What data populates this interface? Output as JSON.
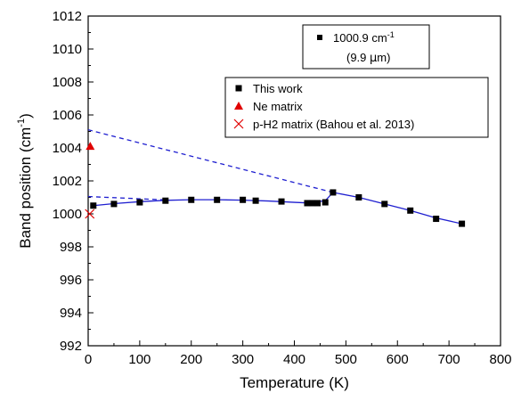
{
  "chart_data": {
    "type": "scatter",
    "xlabel": "Temperature (K)",
    "ylabel_main": "Band position (cm",
    "ylabel_sup": "-1",
    "ylabel_end": ")",
    "xlim": [
      0,
      800
    ],
    "ylim": [
      992,
      1012
    ],
    "xticks": [
      0,
      100,
      200,
      300,
      400,
      500,
      600,
      700,
      800
    ],
    "yticks": [
      992,
      994,
      996,
      998,
      1000,
      1002,
      1004,
      1006,
      1008,
      1010,
      1012
    ],
    "grid": false,
    "band_label": {
      "line1_value": "1000.9 cm",
      "line1_sup": "-1",
      "line2_pre": "(9.9 ",
      "line2_mu": "μ",
      "line2_post": "m)"
    },
    "legend": {
      "placement": "top-right",
      "entries": [
        {
          "label": "This work",
          "marker": "square",
          "color": "#000000"
        },
        {
          "label": "Ne matrix",
          "marker": "triangle",
          "color": "#e00000"
        },
        {
          "label": "p-H2 matrix (Bahou et al. 2013)",
          "marker": "x",
          "color": "#e00000"
        }
      ]
    },
    "series": [
      {
        "marker": "square",
        "color": "#000000",
        "x": [
          10,
          50,
          100,
          150,
          200,
          250,
          300,
          325,
          375,
          425,
          435,
          445,
          460,
          475,
          525,
          575,
          625,
          675,
          725
        ],
        "y": [
          1000.5,
          1000.6,
          1000.7,
          1000.8,
          1000.85,
          1000.85,
          1000.85,
          1000.8,
          1000.75,
          1000.65,
          1000.65,
          1000.65,
          1000.7,
          1001.3,
          1001.0,
          1000.6,
          1000.2,
          999.7,
          999.4
        ]
      },
      {
        "marker": "triangle",
        "color": "#e00000",
        "x": [
          4
        ],
        "y": [
          1004.1
        ]
      },
      {
        "marker": "x",
        "color": "#e00000",
        "x": [
          3
        ],
        "y": [
          1000.0
        ]
      }
    ],
    "fit_lines": [
      {
        "style": "solid",
        "color": "#1f1fd0",
        "x": [
          10,
          50,
          100,
          150,
          200,
          250,
          300,
          350,
          400,
          430,
          460,
          475,
          525,
          575,
          625,
          675,
          725
        ],
        "y": [
          1000.5,
          1000.62,
          1000.74,
          1000.82,
          1000.86,
          1000.86,
          1000.83,
          1000.78,
          1000.7,
          1000.66,
          1000.8,
          1001.3,
          1001.0,
          1000.6,
          1000.2,
          999.75,
          999.4
        ]
      },
      {
        "style": "dashed",
        "color": "#1f1fd0",
        "x": [
          0,
          475
        ],
        "y": [
          1005.1,
          1001.3
        ]
      },
      {
        "style": "dashed",
        "color": "#1f1fd0",
        "x": [
          0,
          150
        ],
        "y": [
          1001.05,
          1000.85
        ]
      }
    ]
  }
}
